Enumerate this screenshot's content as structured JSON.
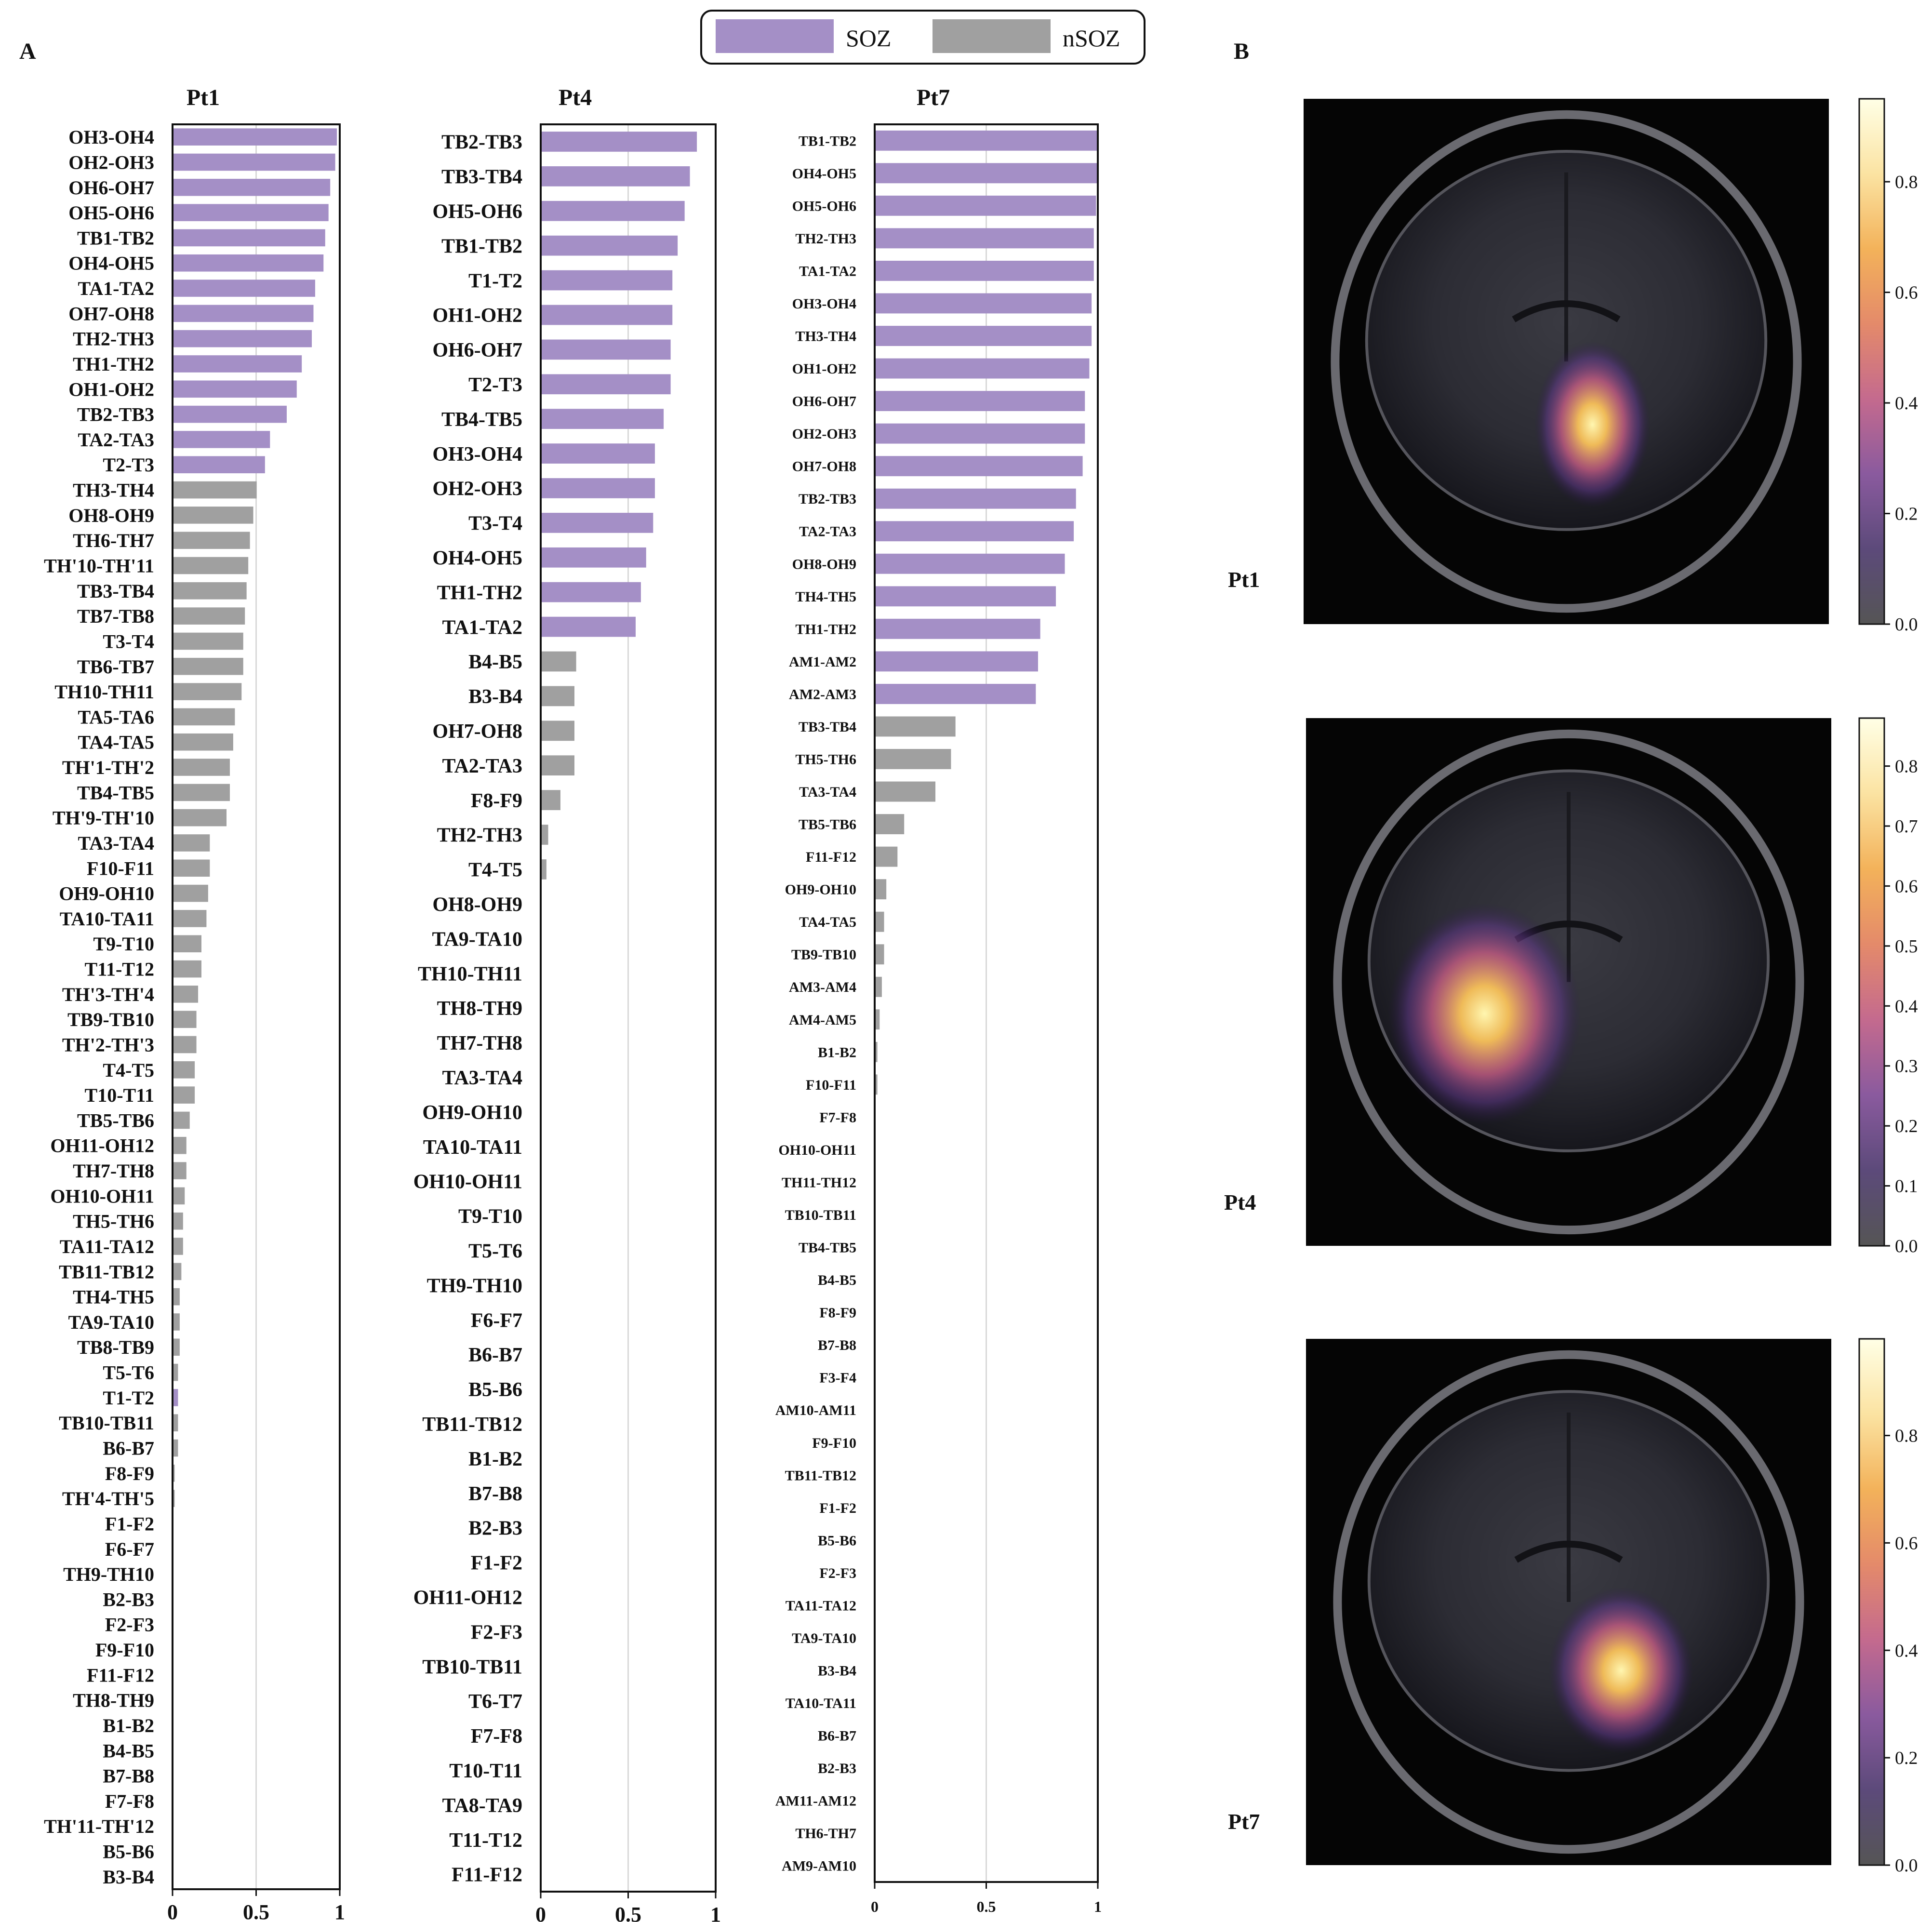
{
  "panel_labels": {
    "a": "A",
    "b": "B"
  },
  "legend": {
    "items": [
      {
        "label": "SOZ",
        "color": "#A48FC6"
      },
      {
        "label": "nSOZ",
        "color": "#A0A0A0"
      }
    ]
  },
  "colors": {
    "soz": "#A48FC6",
    "nsoz": "#A0A0A0"
  },
  "chart_data": [
    {
      "type": "bar",
      "orientation": "horizontal",
      "title": "Pt1",
      "xlim": [
        0,
        1
      ],
      "xticks": [
        "0",
        "0.5",
        "1"
      ],
      "grid": "vertical at 0.5",
      "categories": [
        "OH3-OH4",
        "OH2-OH3",
        "OH6-OH7",
        "OH5-OH6",
        "TB1-TB2",
        "OH4-OH5",
        "TA1-TA2",
        "OH7-OH8",
        "TH2-TH3",
        "TH1-TH2",
        "OH1-OH2",
        "TB2-TB3",
        "TA2-TA3",
        "T2-T3",
        "TH3-TH4",
        "OH8-OH9",
        "TH6-TH7",
        "TH'10-TH'11",
        "TB3-TB4",
        "TB7-TB8",
        "T3-T4",
        "TB6-TB7",
        "TH10-TH11",
        "TA5-TA6",
        "TA4-TA5",
        "TH'1-TH'2",
        "TB4-TB5",
        "TH'9-TH'10",
        "TA3-TA4",
        "F10-F11",
        "OH9-OH10",
        "TA10-TA11",
        "T9-T10",
        "T11-T12",
        "TH'3-TH'4",
        "TB9-TB10",
        "TH'2-TH'3",
        "T4-T5",
        "T10-T11",
        "TB5-TB6",
        "OH11-OH12",
        "TH7-TH8",
        "OH10-OH11",
        "TH5-TH6",
        "TA11-TA12",
        "TB11-TB12",
        "TH4-TH5",
        "TA9-TA10",
        "TB8-TB9",
        "T5-T6",
        "T1-T2",
        "TB10-TB11",
        "B6-B7",
        "F8-F9",
        "TH'4-TH'5",
        "F1-F2",
        "F6-F7",
        "TH9-TH10",
        "B2-B3",
        "F2-F3",
        "F9-F10",
        "F11-F12",
        "TH8-TH9",
        "B1-B2",
        "B4-B5",
        "B7-B8",
        "F7-F8",
        "TH'11-TH'12",
        "B5-B6",
        "B3-B4"
      ],
      "values": [
        0.98,
        0.97,
        0.94,
        0.93,
        0.91,
        0.9,
        0.85,
        0.84,
        0.83,
        0.77,
        0.74,
        0.68,
        0.58,
        0.55,
        0.5,
        0.48,
        0.46,
        0.45,
        0.44,
        0.43,
        0.42,
        0.42,
        0.41,
        0.37,
        0.36,
        0.34,
        0.34,
        0.32,
        0.22,
        0.22,
        0.21,
        0.2,
        0.17,
        0.17,
        0.15,
        0.14,
        0.14,
        0.13,
        0.13,
        0.1,
        0.08,
        0.08,
        0.07,
        0.06,
        0.06,
        0.05,
        0.04,
        0.04,
        0.04,
        0.03,
        0.03,
        0.03,
        0.03,
        0.01,
        0.01,
        0,
        0,
        0,
        0,
        0,
        0,
        0,
        0,
        0,
        0,
        0,
        0,
        0,
        0,
        0
      ],
      "soz": [
        1,
        1,
        1,
        1,
        1,
        1,
        1,
        1,
        1,
        1,
        1,
        1,
        1,
        1,
        0,
        0,
        0,
        0,
        0,
        0,
        0,
        0,
        0,
        0,
        0,
        0,
        0,
        0,
        0,
        0,
        0,
        0,
        0,
        0,
        0,
        0,
        0,
        0,
        0,
        0,
        0,
        0,
        0,
        0,
        0,
        0,
        0,
        0,
        0,
        0,
        1,
        0,
        0,
        0,
        0,
        0,
        0,
        0,
        0,
        0,
        0,
        0,
        0,
        0,
        0,
        0,
        0,
        0,
        0,
        0
      ]
    },
    {
      "type": "bar",
      "orientation": "horizontal",
      "title": "Pt4",
      "xlim": [
        0,
        1
      ],
      "xticks": [
        "0",
        "0.5",
        "1"
      ],
      "grid": "vertical at 0.5",
      "categories": [
        "TB2-TB3",
        "TB3-TB4",
        "OH5-OH6",
        "TB1-TB2",
        "T1-T2",
        "OH1-OH2",
        "OH6-OH7",
        "T2-T3",
        "TB4-TB5",
        "OH3-OH4",
        "OH2-OH3",
        "T3-T4",
        "OH4-OH5",
        "TH1-TH2",
        "TA1-TA2",
        "B4-B5",
        "B3-B4",
        "OH7-OH8",
        "TA2-TA3",
        "F8-F9",
        "TH2-TH3",
        "T4-T5",
        "OH8-OH9",
        "TA9-TA10",
        "TH10-TH11",
        "TH8-TH9",
        "TH7-TH8",
        "TA3-TA4",
        "OH9-OH10",
        "TA10-TA11",
        "OH10-OH11",
        "T9-T10",
        "T5-T6",
        "TH9-TH10",
        "F6-F7",
        "B6-B7",
        "B5-B6",
        "TB11-TB12",
        "B1-B2",
        "B7-B8",
        "B2-B3",
        "F1-F2",
        "OH11-OH12",
        "F2-F3",
        "TB10-TB11",
        "T6-T7",
        "F7-F8",
        "T10-T11",
        "TA8-TA9",
        "T11-T12",
        "F11-F12"
      ],
      "values": [
        0.89,
        0.85,
        0.82,
        0.78,
        0.75,
        0.75,
        0.74,
        0.74,
        0.7,
        0.65,
        0.65,
        0.64,
        0.6,
        0.57,
        0.54,
        0.2,
        0.19,
        0.19,
        0.19,
        0.11,
        0.04,
        0.03,
        0,
        0,
        0,
        0,
        0,
        0,
        0,
        0,
        0,
        0,
        0,
        0,
        0,
        0,
        0,
        0,
        0,
        0,
        0,
        0,
        0,
        0,
        0,
        0,
        0,
        0,
        0,
        0,
        0
      ],
      "soz": [
        1,
        1,
        1,
        1,
        1,
        1,
        1,
        1,
        1,
        1,
        1,
        1,
        1,
        1,
        1,
        0,
        0,
        0,
        0,
        0,
        0,
        0,
        0,
        0,
        0,
        0,
        0,
        0,
        0,
        0,
        0,
        0,
        0,
        0,
        0,
        0,
        0,
        0,
        0,
        0,
        0,
        0,
        0,
        0,
        0,
        0,
        0,
        0,
        0,
        0,
        0
      ]
    },
    {
      "type": "bar",
      "orientation": "horizontal",
      "title": "Pt7",
      "xlim": [
        0,
        1
      ],
      "xticks": [
        "0",
        "0.5",
        "1"
      ],
      "grid": "vertical at 0.5",
      "categories": [
        "TB1-TB2",
        "OH4-OH5",
        "OH5-OH6",
        "TH2-TH3",
        "TA1-TA2",
        "OH3-OH4",
        "TH3-TH4",
        "OH1-OH2",
        "OH6-OH7",
        "OH2-OH3",
        "OH7-OH8",
        "TB2-TB3",
        "TA2-TA3",
        "OH8-OH9",
        "TH4-TH5",
        "TH1-TH2",
        "AM1-AM2",
        "AM2-AM3",
        "TB3-TB4",
        "TH5-TH6",
        "TA3-TA4",
        "TB5-TB6",
        "F11-F12",
        "OH9-OH10",
        "TA4-TA5",
        "TB9-TB10",
        "AM3-AM4",
        "AM4-AM5",
        "B1-B2",
        "F10-F11",
        "F7-F8",
        "OH10-OH11",
        "TH11-TH12",
        "TB10-TB11",
        "TB4-TB5",
        "B4-B5",
        "F8-F9",
        "B7-B8",
        "F3-F4",
        "AM10-AM11",
        "F9-F10",
        "TB11-TB12",
        "F1-F2",
        "B5-B6",
        "F2-F3",
        "TA11-TA12",
        "TA9-TA10",
        "B3-B4",
        "TA10-TA11",
        "B6-B7",
        "B2-B3",
        "AM11-AM12",
        "TH6-TH7",
        "AM9-AM10"
      ],
      "values": [
        1.0,
        1.0,
        0.99,
        0.98,
        0.98,
        0.97,
        0.97,
        0.96,
        0.94,
        0.94,
        0.93,
        0.9,
        0.89,
        0.85,
        0.81,
        0.74,
        0.73,
        0.72,
        0.36,
        0.34,
        0.27,
        0.13,
        0.1,
        0.05,
        0.04,
        0.04,
        0.03,
        0.02,
        0.01,
        0.01,
        0,
        0,
        0,
        0,
        0,
        0,
        0,
        0,
        0,
        0,
        0,
        0,
        0,
        0,
        0,
        0,
        0,
        0,
        0,
        0,
        0,
        0,
        0,
        0
      ],
      "soz": [
        1,
        1,
        1,
        1,
        1,
        1,
        1,
        1,
        1,
        1,
        1,
        1,
        1,
        1,
        1,
        1,
        1,
        1,
        0,
        0,
        0,
        0,
        0,
        0,
        0,
        0,
        0,
        0,
        0,
        0,
        0,
        0,
        0,
        0,
        0,
        0,
        0,
        0,
        0,
        0,
        0,
        0,
        0,
        0,
        0,
        0,
        0,
        0,
        0,
        0,
        0,
        0,
        0,
        0
      ]
    }
  ],
  "brain_panels": [
    {
      "label": "Pt1",
      "colorbar": {
        "max": 0.95,
        "ticks": [
          "0.0",
          "0.2",
          "0.4",
          "0.6",
          "0.8"
        ],
        "values": [
          0,
          0.2,
          0.4,
          0.6,
          0.8
        ]
      }
    },
    {
      "label": "Pt4",
      "colorbar": {
        "max": 0.88,
        "ticks": [
          "0.0",
          "0.1",
          "0.2",
          "0.3",
          "0.4",
          "0.5",
          "0.6",
          "0.7",
          "0.8"
        ],
        "values": [
          0,
          0.1,
          0.2,
          0.3,
          0.4,
          0.5,
          0.6,
          0.7,
          0.8
        ]
      }
    },
    {
      "label": "Pt7",
      "colorbar": {
        "max": 0.98,
        "ticks": [
          "0.0",
          "0.2",
          "0.4",
          "0.6",
          "0.8"
        ],
        "values": [
          0,
          0.2,
          0.4,
          0.6,
          0.8
        ]
      }
    }
  ],
  "colorbar_colors": [
    "#555555",
    "#5C4A7A",
    "#8A5A9E",
    "#C46A8E",
    "#E48A6A",
    "#F3B25A",
    "#FBE3A2",
    "#FFFFE6"
  ]
}
